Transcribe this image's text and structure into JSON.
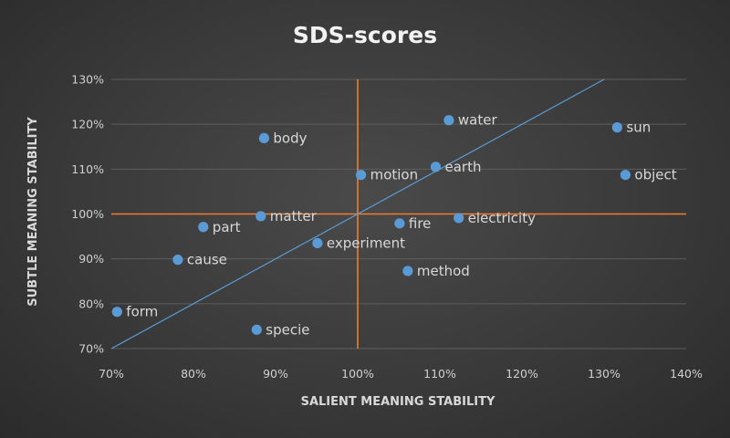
{
  "chart_data": {
    "type": "scatter",
    "title": "SDS-scores",
    "xlabel": "SALIENT MEANING STABILITY",
    "ylabel": "SUBTLE MEANING STABILITY",
    "xlim": [
      70,
      140
    ],
    "ylim": [
      70,
      130
    ],
    "x_ticks": [
      "70%",
      "80%",
      "90%",
      "100%",
      "110%",
      "120%",
      "130%",
      "140%"
    ],
    "y_ticks": [
      "70%",
      "80%",
      "90%",
      "100%",
      "110%",
      "120%",
      "130%"
    ],
    "grid": "horizontal",
    "reference_lines": {
      "x": 100,
      "y": 100,
      "diagonal": [
        [
          70,
          70
        ],
        [
          130,
          130
        ]
      ]
    },
    "colors": {
      "points": "#5b9bd5",
      "reference": "#ed7d31",
      "diagonal": "#5b9bd5"
    },
    "points": [
      {
        "label": "form",
        "x": 70.7,
        "y": 78.2
      },
      {
        "label": "cause",
        "x": 78.1,
        "y": 89.8
      },
      {
        "label": "part",
        "x": 81.2,
        "y": 97.1
      },
      {
        "label": "body",
        "x": 88.6,
        "y": 116.9
      },
      {
        "label": "matter",
        "x": 88.2,
        "y": 99.5
      },
      {
        "label": "specie",
        "x": 87.7,
        "y": 74.2
      },
      {
        "label": "experiment",
        "x": 95.1,
        "y": 93.5
      },
      {
        "label": "motion",
        "x": 100.4,
        "y": 108.7
      },
      {
        "label": "fire",
        "x": 105.1,
        "y": 97.9
      },
      {
        "label": "method",
        "x": 106.1,
        "y": 87.3
      },
      {
        "label": "earth",
        "x": 109.5,
        "y": 110.5
      },
      {
        "label": "water",
        "x": 111.1,
        "y": 120.9
      },
      {
        "label": "electricity",
        "x": 112.3,
        "y": 99.1
      },
      {
        "label": "sun",
        "x": 131.6,
        "y": 119.3
      },
      {
        "label": "object",
        "x": 132.6,
        "y": 108.7
      }
    ]
  }
}
